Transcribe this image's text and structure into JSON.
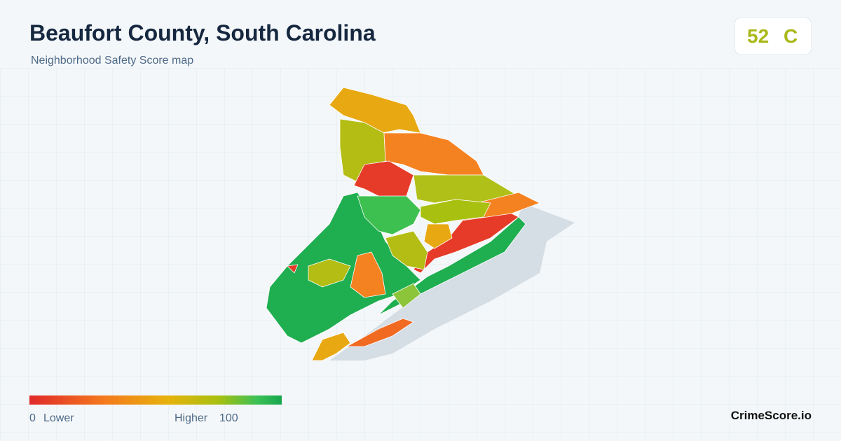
{
  "header": {
    "title": "Beaufort County, South Carolina",
    "subtitle": "Neighborhood Safety Score map"
  },
  "score": {
    "value": 52,
    "grade": "C"
  },
  "legend": {
    "min": 0,
    "min_label": "Lower",
    "max_label": "Higher",
    "max": 100
  },
  "brand": "CrimeScore.io"
}
